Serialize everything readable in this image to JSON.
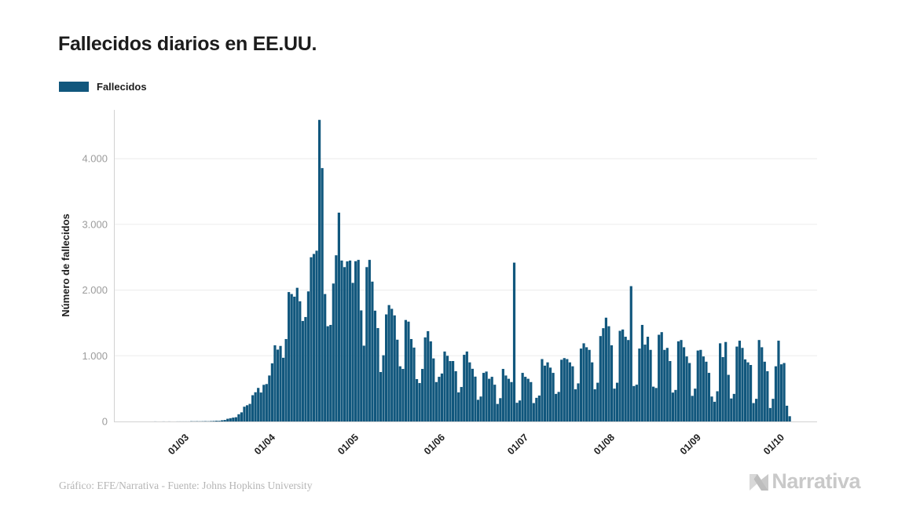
{
  "header": {
    "title": "Fallecidos diarios en EE.UU."
  },
  "legend": {
    "label": "Fallecidos",
    "swatch_color": "#11577d"
  },
  "chart_data": {
    "type": "bar",
    "title": "Fallecidos diarios en EE.UU.",
    "xlabel": "",
    "ylabel": "Número de fallecidos",
    "series_name": "Fallecidos",
    "grid": true,
    "legend_position": "top-left",
    "bar_color": "#11577d",
    "ylim": [
      0,
      4750
    ],
    "y_ticks": {
      "values": [
        0,
        1000,
        2000,
        3000,
        4000
      ],
      "labels": [
        "0",
        "1.000",
        "2.000",
        "3.000",
        "4.000"
      ]
    },
    "x_ticks": {
      "labels": [
        "01/03",
        "01/04",
        "01/05",
        "01/06",
        "01/07",
        "01/08",
        "01/09",
        "01/10"
      ],
      "day_indices": [
        24,
        55,
        85,
        116,
        146,
        177,
        208,
        238
      ]
    },
    "x_unit": "day",
    "x_start_date": "06/02/2020",
    "x_end_date": "04/10/2020",
    "values": [
      0,
      0,
      0,
      0,
      0,
      0,
      0,
      0,
      0,
      0,
      0,
      0,
      0,
      1,
      0,
      0,
      1,
      0,
      1,
      0,
      0,
      1,
      1,
      1,
      1,
      1,
      4,
      3,
      4,
      3,
      4,
      5,
      4,
      6,
      8,
      11,
      10,
      18,
      23,
      41,
      50,
      59,
      65,
      110,
      139,
      225,
      247,
      268,
      400,
      445,
      511,
      441,
      558,
      570,
      700,
      885,
      1160,
      1094,
      1150,
      970,
      1255,
      1970,
      1940,
      1900,
      2035,
      1830,
      1530,
      1590,
      1980,
      2500,
      2550,
      2600,
      4591,
      3857,
      1940,
      1450,
      1470,
      2100,
      2530,
      3179,
      2450,
      2350,
      2437,
      2450,
      2110,
      2440,
      2460,
      1691,
      1154,
      2350,
      2460,
      2129,
      1687,
      1422,
      753,
      1008,
      1630,
      1772,
      1715,
      1615,
      1245,
      840,
      800,
      1545,
      1520,
      1255,
      1125,
      645,
      585,
      800,
      1280,
      1375,
      1220,
      960,
      600,
      680,
      730,
      1065,
      1000,
      920,
      920,
      765,
      443,
      525,
      1015,
      1065,
      900,
      802,
      683,
      330,
      380,
      740,
      760,
      650,
      680,
      560,
      267,
      355,
      800,
      700,
      650,
      600,
      2418,
      285,
      320,
      740,
      680,
      650,
      600,
      280,
      360,
      395,
      950,
      850,
      900,
      820,
      740,
      420,
      450,
      940,
      965,
      950,
      900,
      840,
      490,
      580,
      1110,
      1190,
      1130,
      1090,
      900,
      490,
      590,
      1300,
      1420,
      1580,
      1450,
      1160,
      500,
      590,
      1380,
      1400,
      1290,
      1240,
      2060,
      540,
      560,
      1110,
      1470,
      1170,
      1290,
      1090,
      530,
      510,
      1320,
      1360,
      1090,
      1120,
      920,
      440,
      480,
      1220,
      1240,
      1130,
      990,
      890,
      390,
      500,
      1080,
      1090,
      990,
      910,
      740,
      380,
      300,
      460,
      1190,
      980,
      1210,
      710,
      350,
      420,
      1140,
      1230,
      1120,
      945,
      900,
      860,
      280,
      345,
      1240,
      1130,
      910,
      765,
      205,
      345,
      840,
      1230,
      870,
      890,
      240,
      80
    ]
  },
  "footer": {
    "credit": "Gráfico: EFE/Narrativa - Fuente: Johns Hopkins University",
    "brand": "Narrativa"
  }
}
